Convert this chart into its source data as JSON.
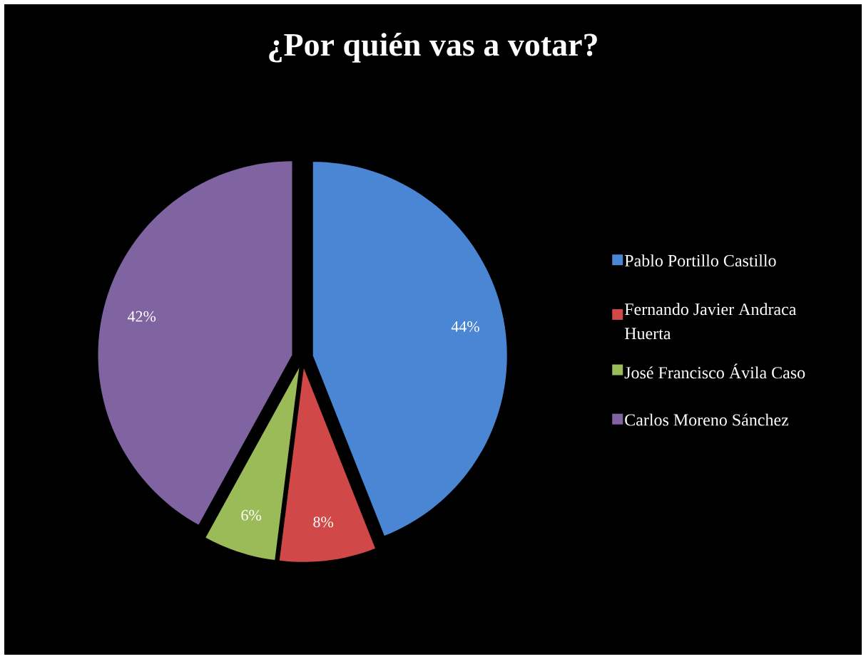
{
  "chart_data": {
    "type": "pie",
    "title": "¿Por quién vas a votar?",
    "categories": [
      "Pablo Portillo Castillo",
      "Fernando Javier Andraca Huerta",
      "José Francisco Ávila Caso",
      "Carlos Moreno Sánchez"
    ],
    "values": [
      44,
      8,
      6,
      42
    ],
    "colors": [
      "#4a86d4",
      "#d04848",
      "#9bbb59",
      "#8064a2"
    ],
    "value_labels": [
      "44%",
      "8%",
      "6%",
      "42%"
    ],
    "data_labels": true,
    "legend": "right"
  }
}
